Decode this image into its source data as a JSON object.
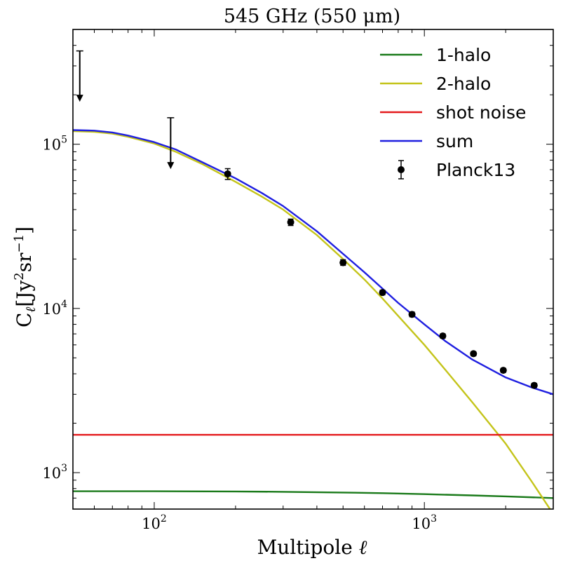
{
  "chart_data": {
    "type": "line",
    "title": "545 GHz (550 μm)",
    "xlabel_main": "Multipole ",
    "xlabel_symbol": "ℓ",
    "ylabel_main": "C",
    "ylabel_sub": "ℓ",
    "ylabel_unit": "[Jy",
    "ylabel_sup1": "2",
    "ylabel_unit2": "sr",
    "ylabel_sup2": "−1",
    "ylabel_close": "]",
    "xscale": "log",
    "yscale": "log",
    "xlim": [
      50,
      3000
    ],
    "ylim": [
      600,
      500000
    ],
    "xticks": [
      {
        "value": 100,
        "base": "10",
        "exp": "2"
      },
      {
        "value": 1000,
        "base": "10",
        "exp": "3"
      }
    ],
    "yticks": [
      {
        "value": 1000,
        "base": "10",
        "exp": "3"
      },
      {
        "value": 10000,
        "base": "10",
        "exp": "4"
      },
      {
        "value": 100000,
        "base": "10",
        "exp": "5"
      }
    ],
    "legend_position": "top-right",
    "series": [
      {
        "name": "1-halo",
        "color": "#1a7a1a",
        "x": [
          50,
          100,
          200,
          300,
          500,
          700,
          1000,
          1500,
          2000,
          3000
        ],
        "y": [
          770,
          770,
          768,
          764,
          757,
          750,
          740,
          727,
          717,
          700
        ]
      },
      {
        "name": "2-halo",
        "color": "#c4c41a",
        "x": [
          50,
          60,
          70,
          80,
          100,
          120,
          150,
          200,
          250,
          300,
          400,
          500,
          600,
          700,
          800,
          1000,
          1200,
          1500,
          2000,
          2500,
          3000
        ],
        "y": [
          120000,
          119000,
          116000,
          111000,
          101000,
          90000,
          76000,
          59000,
          48000,
          40000,
          28000,
          20000,
          15000,
          11500,
          9000,
          6000,
          4200,
          2700,
          1500,
          880,
          560
        ]
      },
      {
        "name": "shot noise",
        "color": "#e41a1c",
        "x": [
          50,
          3000
        ],
        "y": [
          1700,
          1700
        ]
      },
      {
        "name": "sum",
        "color": "#1f1fe0",
        "x": [
          50,
          60,
          70,
          80,
          100,
          120,
          150,
          200,
          250,
          300,
          400,
          500,
          600,
          700,
          800,
          1000,
          1200,
          1500,
          2000,
          2500,
          3000
        ],
        "y": [
          122000,
          121000,
          118000,
          113000,
          103000,
          93000,
          78000,
          62000,
          50500,
          42000,
          29500,
          21500,
          16600,
          13200,
          10800,
          8000,
          6300,
          4900,
          3800,
          3300,
          3000
        ]
      }
    ],
    "points": {
      "name": "Planck13",
      "color": "#000000",
      "data": [
        {
          "x": 187,
          "y": 66000,
          "yerr_low": 61000,
          "yerr_high": 71000
        },
        {
          "x": 320,
          "y": 33500,
          "yerr_low": 32000,
          "yerr_high": 35000
        },
        {
          "x": 500,
          "y": 19000,
          "yerr_low": 18300,
          "yerr_high": 19800
        },
        {
          "x": 700,
          "y": 12500,
          "yerr_low": 12100,
          "yerr_high": 12900
        },
        {
          "x": 900,
          "y": 9200,
          "yerr_low": 8900,
          "yerr_high": 9500
        },
        {
          "x": 1170,
          "y": 6800,
          "yerr_low": 6600,
          "yerr_high": 7000
        },
        {
          "x": 1520,
          "y": 5300,
          "yerr_low": 5150,
          "yerr_high": 5450
        },
        {
          "x": 1960,
          "y": 4200,
          "yerr_low": 4080,
          "yerr_high": 4320
        },
        {
          "x": 2550,
          "y": 3400,
          "yerr_low": 3300,
          "yerr_high": 3500
        }
      ]
    },
    "upper_limits": [
      {
        "x": 53,
        "y_top": 370000,
        "y_bottom": 185000
      },
      {
        "x": 115,
        "y_top": 145000,
        "y_bottom": 72000
      }
    ]
  }
}
